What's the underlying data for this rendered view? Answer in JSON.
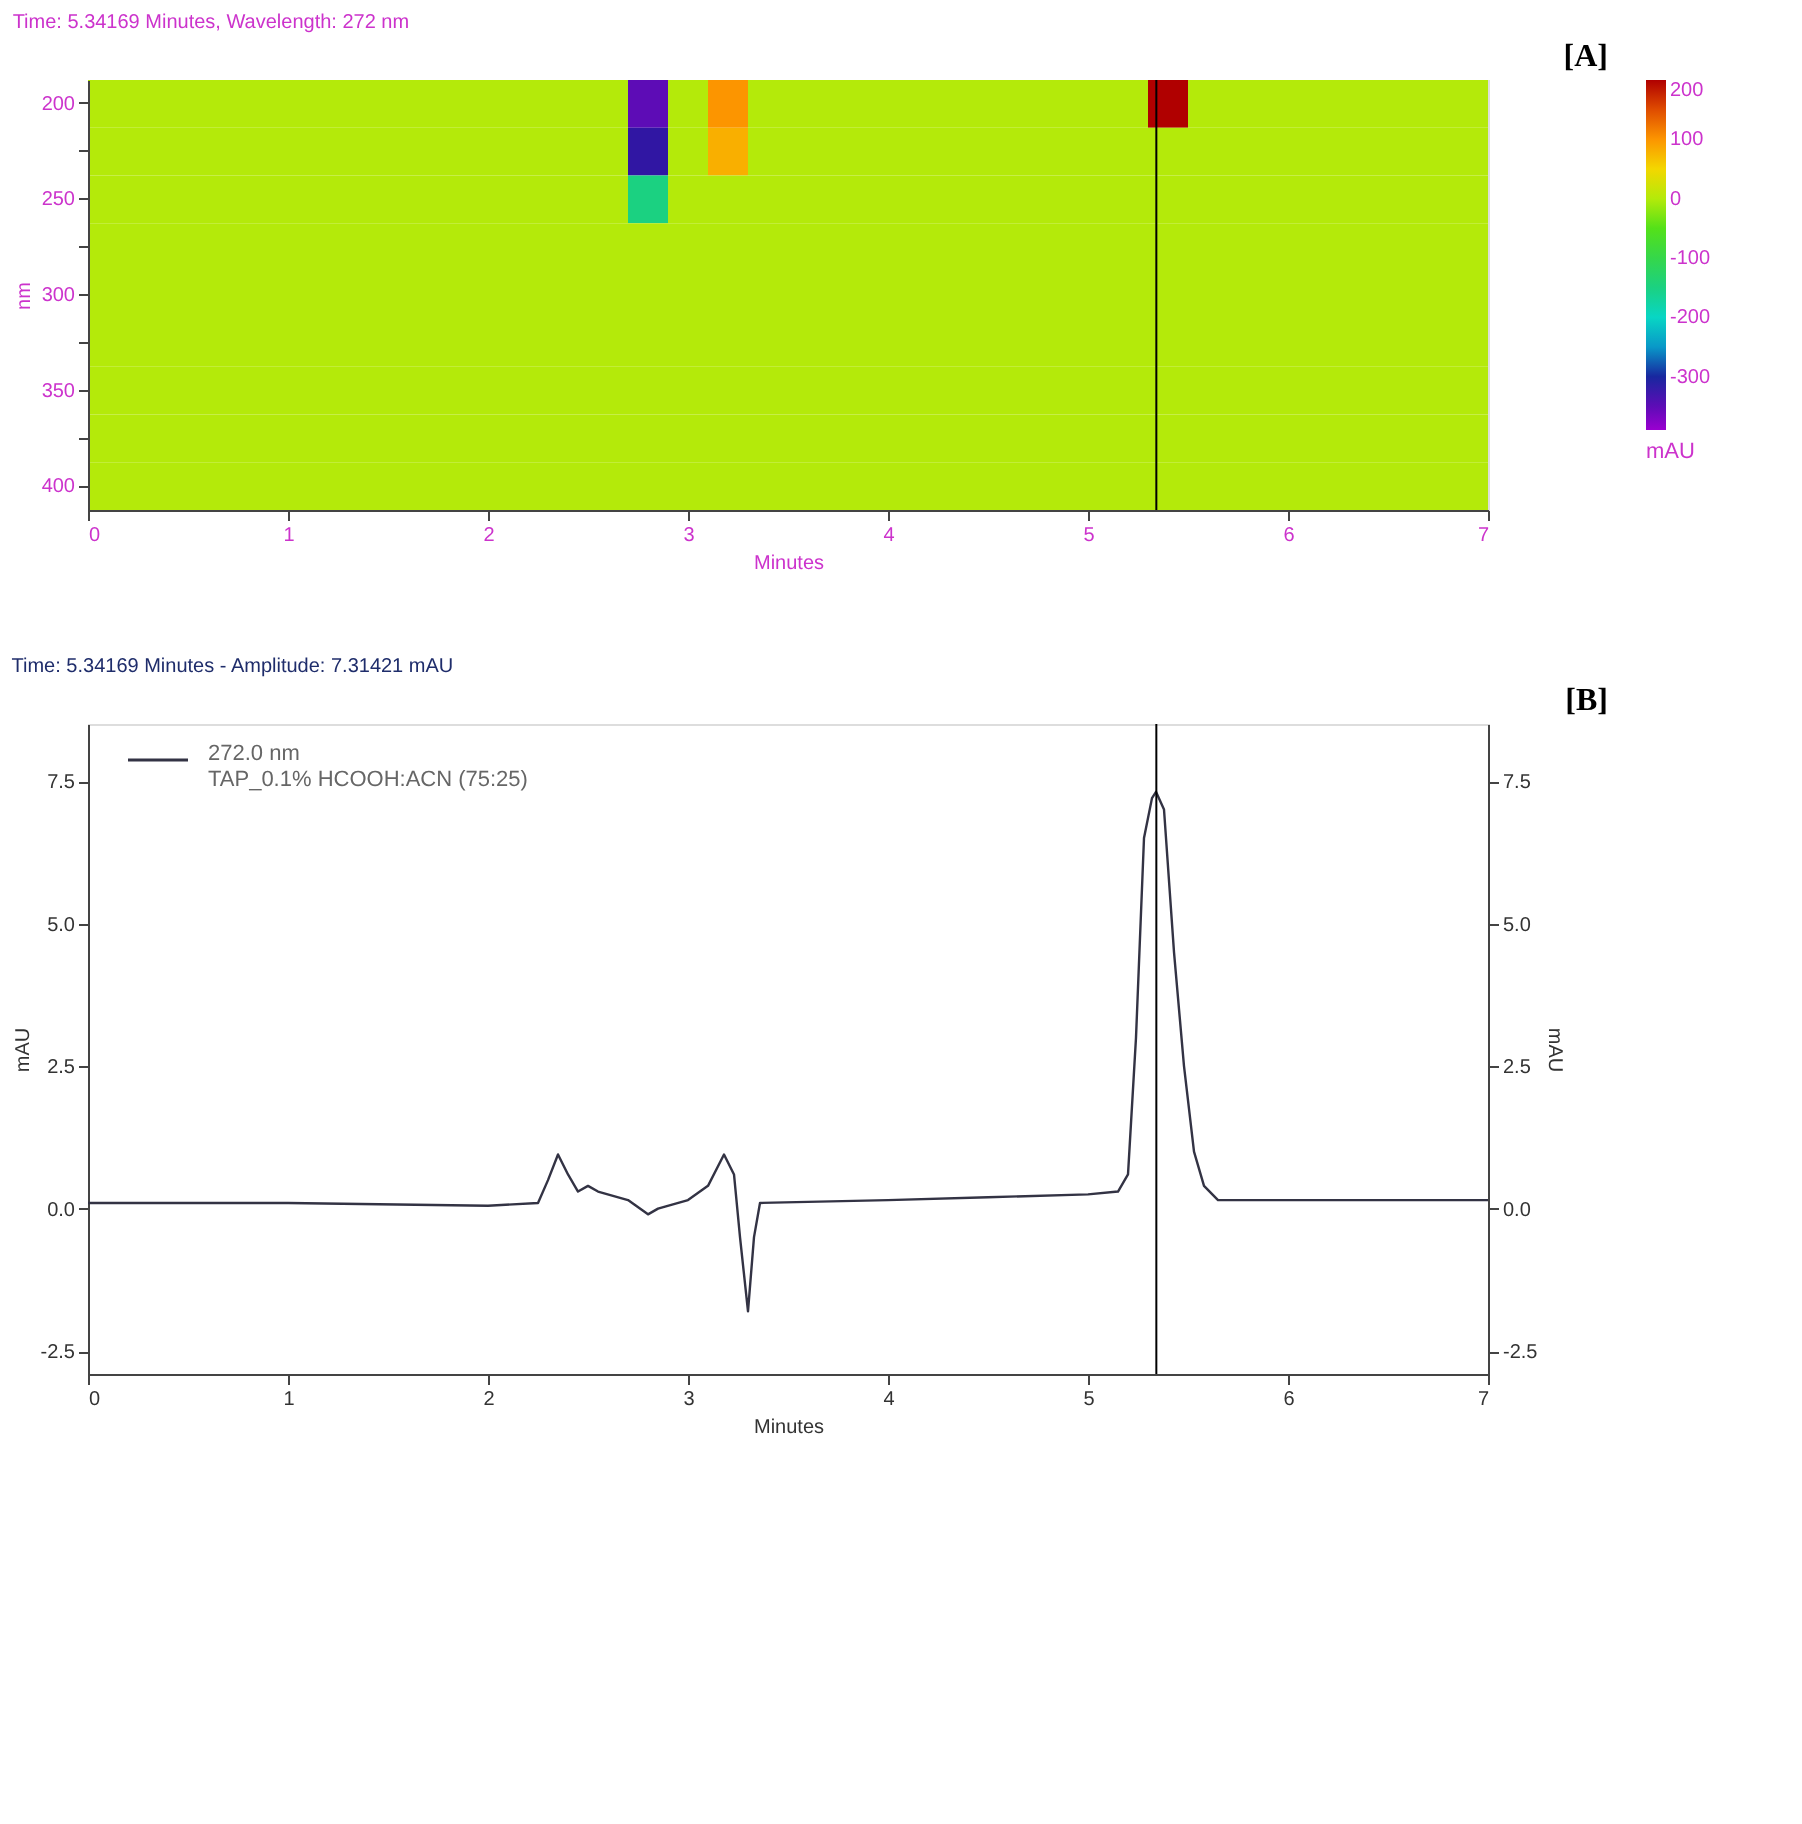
{
  "chart_data": [
    {
      "type": "heatmap",
      "title": "Time: 5.34169 Minutes, Wavelength: 272 nm",
      "xlabel": "Minutes",
      "ylabel": "nm",
      "clabel": "mAU",
      "x": [
        0,
        0.2,
        0.4,
        0.6,
        0.8,
        1.0,
        1.2,
        1.4,
        1.6,
        1.8,
        2.0,
        2.2,
        2.4,
        2.6,
        2.8,
        3.0,
        3.2,
        3.4,
        3.6,
        3.8,
        4.0,
        4.2,
        4.4,
        4.6,
        4.8,
        5.0,
        5.2,
        5.4,
        5.6,
        5.8,
        6.0,
        6.2,
        6.4,
        6.6,
        6.8,
        7.0
      ],
      "y_categories": [
        "200",
        null,
        "250",
        null,
        "300",
        null,
        "350",
        null,
        "400"
      ],
      "cells": [
        [
          0,
          0,
          0,
          0,
          0,
          0,
          0,
          0,
          0,
          0,
          0,
          0,
          0,
          0,
          -350,
          0,
          100,
          0,
          0,
          0,
          0,
          0,
          0,
          0,
          0,
          0,
          0,
          200,
          0,
          0,
          0,
          0,
          0,
          0,
          0,
          0
        ],
        [
          0,
          0,
          0,
          0,
          0,
          0,
          0,
          0,
          0,
          0,
          0,
          0,
          0,
          0,
          -320,
          0,
          80,
          0,
          0,
          0,
          0,
          0,
          0,
          0,
          0,
          0,
          0,
          0,
          0,
          0,
          0,
          0,
          0,
          0,
          0,
          0
        ],
        [
          0,
          0,
          0,
          0,
          0,
          0,
          0,
          0,
          0,
          0,
          0,
          0,
          0,
          0,
          -150,
          0,
          0,
          0,
          0,
          0,
          0,
          0,
          0,
          0,
          0,
          0,
          0,
          0,
          0,
          0,
          0,
          0,
          0,
          0,
          0,
          0
        ],
        [
          0,
          0,
          0,
          0,
          0,
          0,
          0,
          0,
          0,
          0,
          0,
          0,
          0,
          0,
          0,
          0,
          0,
          0,
          0,
          0,
          0,
          0,
          0,
          0,
          0,
          0,
          0,
          0,
          0,
          0,
          0,
          0,
          0,
          0,
          0,
          0
        ],
        [
          0,
          0,
          0,
          0,
          0,
          0,
          0,
          0,
          0,
          0,
          0,
          0,
          0,
          0,
          0,
          0,
          0,
          0,
          0,
          0,
          0,
          0,
          0,
          0,
          0,
          0,
          0,
          0,
          0,
          0,
          0,
          0,
          0,
          0,
          0,
          0
        ],
        [
          0,
          0,
          0,
          0,
          0,
          0,
          0,
          0,
          0,
          0,
          0,
          0,
          0,
          0,
          0,
          0,
          0,
          0,
          0,
          0,
          0,
          0,
          0,
          0,
          0,
          0,
          0,
          0,
          0,
          0,
          0,
          0,
          0,
          0,
          0,
          0
        ],
        [
          0,
          0,
          0,
          0,
          0,
          0,
          0,
          0,
          0,
          0,
          0,
          0,
          0,
          0,
          0,
          0,
          0,
          0,
          0,
          0,
          0,
          0,
          0,
          0,
          0,
          0,
          0,
          0,
          0,
          0,
          0,
          0,
          0,
          0,
          0,
          0
        ],
        [
          0,
          0,
          0,
          0,
          0,
          0,
          0,
          0,
          0,
          0,
          0,
          0,
          0,
          0,
          0,
          0,
          0,
          0,
          0,
          0,
          0,
          0,
          0,
          0,
          0,
          0,
          0,
          0,
          0,
          0,
          0,
          0,
          0,
          0,
          0,
          0
        ],
        [
          0,
          0,
          0,
          0,
          0,
          0,
          0,
          0,
          0,
          0,
          0,
          0,
          0,
          0,
          0,
          0,
          0,
          0,
          0,
          0,
          0,
          0,
          0,
          0,
          0,
          0,
          0,
          0,
          0,
          0,
          0,
          0,
          0,
          0,
          0,
          0
        ]
      ],
      "xlim": [
        0,
        7
      ],
      "xticks": [
        0,
        1,
        2,
        3,
        4,
        5,
        6,
        7
      ],
      "clim": [
        -390,
        200
      ],
      "cticks": [
        -300,
        -200,
        -100,
        0,
        100,
        200
      ],
      "ref_lines": [
        {
          "axis": "x",
          "value": 5.34169,
          "color": "#000000"
        }
      ],
      "annotations": [
        "[A]"
      ],
      "grid": false
    },
    {
      "type": "line",
      "title": "Time: 5.34169 Minutes - Amplitude: 7.31421 mAU",
      "xlabel": "Minutes",
      "ylabel": "mAU",
      "y2label": "mAU",
      "x": [
        0,
        1.0,
        2.0,
        2.25,
        2.3,
        2.35,
        2.4,
        2.45,
        2.5,
        2.55,
        2.7,
        2.8,
        2.85,
        3.0,
        3.1,
        3.18,
        3.23,
        3.26,
        3.3,
        3.33,
        3.36,
        4.0,
        4.5,
        5.0,
        5.15,
        5.2,
        5.24,
        5.28,
        5.32,
        5.34,
        5.38,
        5.43,
        5.48,
        5.53,
        5.58,
        5.65,
        6.0,
        7.0
      ],
      "series": [
        {
          "name": "272.0 nm",
          "color": "#333344",
          "values": [
            0.1,
            0.1,
            0.05,
            0.1,
            0.5,
            0.95,
            0.6,
            0.3,
            0.4,
            0.3,
            0.15,
            -0.1,
            0.0,
            0.15,
            0.4,
            0.95,
            0.6,
            -0.5,
            -1.8,
            -0.5,
            0.1,
            0.15,
            0.2,
            0.25,
            0.3,
            0.6,
            3.0,
            6.5,
            7.2,
            7.31,
            7.0,
            4.5,
            2.5,
            1.0,
            0.4,
            0.15,
            0.15,
            0.15
          ]
        }
      ],
      "xlim": [
        0,
        7
      ],
      "xticks": [
        0,
        1,
        2,
        3,
        4,
        5,
        6,
        7
      ],
      "ylim": [
        -2.9,
        8.5
      ],
      "yticks": [
        {
          "value": -2.5,
          "label": "-2.5"
        },
        {
          "value": 0,
          "label": "0.0"
        },
        {
          "value": 2.5,
          "label": "2.5"
        },
        {
          "value": 5,
          "label": "5.0"
        },
        {
          "value": 7.5,
          "label": "7.5"
        }
      ],
      "y2lim": [
        -2.9,
        8.5
      ],
      "y2ticks": [
        {
          "value": -2.5,
          "label": "-2.5"
        },
        {
          "value": 0,
          "label": "0.0"
        },
        {
          "value": 2.5,
          "label": "2.5"
        },
        {
          "value": 5,
          "label": "5.0"
        },
        {
          "value": 7.5,
          "label": "7.5"
        }
      ],
      "ref_lines": [
        {
          "axis": "x",
          "value": 5.34169,
          "color": "#000000"
        }
      ],
      "legend": "top left",
      "annotations": [
        "TAP_0.1% HCOOH:ACN (75:25)",
        "[B]"
      ],
      "grid": false,
      "line_style": "solid",
      "marker": "none"
    }
  ]
}
